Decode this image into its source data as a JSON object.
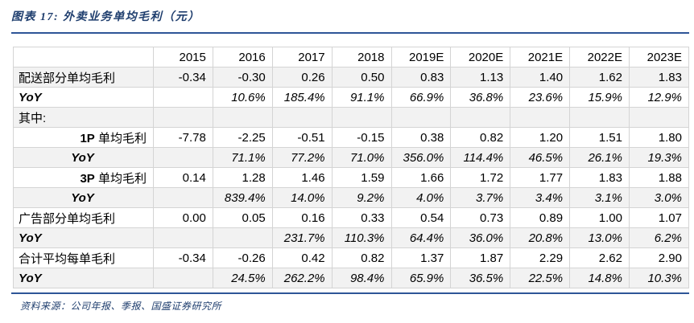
{
  "title": "图表 17: 外卖业务单均毛利（元）",
  "source": "资料来源：公司年报、季报、国盛证券研究所",
  "colors": {
    "navy": "#1F3E6E",
    "accent": "#2E5597",
    "border": "#D4D4D4",
    "stripe": "#F2F2F2"
  },
  "chart_data": {
    "type": "table",
    "title": "外卖业务单均毛利（元）",
    "columns": [
      "2015",
      "2016",
      "2017",
      "2018",
      "2019E",
      "2020E",
      "2021E",
      "2022E",
      "2023E"
    ],
    "rows": [
      {
        "label": "配送部分单均毛利",
        "label_align": "left",
        "values": [
          "-0.34",
          "-0.30",
          "0.26",
          "0.50",
          "0.83",
          "1.13",
          "1.40",
          "1.62",
          "1.83"
        ]
      },
      {
        "label": "YoY",
        "label_align": "left",
        "yoy": true,
        "italic": true,
        "values": [
          "",
          "10.6%",
          "185.4%",
          "91.1%",
          "66.9%",
          "36.8%",
          "23.6%",
          "15.9%",
          "12.9%"
        ]
      },
      {
        "label": "其中:",
        "label_align": "left",
        "values": [
          "",
          "",
          "",
          "",
          "",
          "",
          "",
          "",
          ""
        ]
      },
      {
        "prefix": "1P",
        "label": "单均毛利",
        "label_align": "right",
        "values": [
          "-7.78",
          "-2.25",
          "-0.51",
          "-0.15",
          "0.38",
          "0.82",
          "1.20",
          "1.51",
          "1.80"
        ]
      },
      {
        "label": "YoY",
        "label_align": "center",
        "yoy": true,
        "italic": true,
        "values": [
          "",
          "71.1%",
          "77.2%",
          "71.0%",
          "356.0%",
          "114.4%",
          "46.5%",
          "26.1%",
          "19.3%"
        ]
      },
      {
        "prefix": "3P",
        "label": "单均毛利",
        "label_align": "right",
        "values": [
          "0.14",
          "1.28",
          "1.46",
          "1.59",
          "1.66",
          "1.72",
          "1.77",
          "1.83",
          "1.88"
        ]
      },
      {
        "label": "YoY",
        "label_align": "center",
        "yoy": true,
        "italic": true,
        "values": [
          "",
          "839.4%",
          "14.0%",
          "9.2%",
          "4.0%",
          "3.7%",
          "3.4%",
          "3.1%",
          "3.0%"
        ]
      },
      {
        "label": "广告部分单均毛利",
        "label_align": "left",
        "values": [
          "0.00",
          "0.05",
          "0.16",
          "0.33",
          "0.54",
          "0.73",
          "0.89",
          "1.00",
          "1.07"
        ]
      },
      {
        "label": "YoY",
        "label_align": "left",
        "yoy": true,
        "italic": true,
        "values": [
          "",
          "",
          "231.7%",
          "110.3%",
          "64.4%",
          "36.0%",
          "20.8%",
          "13.0%",
          "6.2%"
        ]
      },
      {
        "label": "合计平均每单毛利",
        "label_align": "left",
        "values": [
          "-0.34",
          "-0.26",
          "0.42",
          "0.82",
          "1.37",
          "1.87",
          "2.29",
          "2.62",
          "2.90"
        ]
      },
      {
        "label": "YoY",
        "label_align": "left",
        "yoy": true,
        "italic": true,
        "values": [
          "",
          "24.5%",
          "262.2%",
          "98.4%",
          "65.9%",
          "36.5%",
          "22.5%",
          "14.8%",
          "10.3%"
        ]
      }
    ]
  }
}
